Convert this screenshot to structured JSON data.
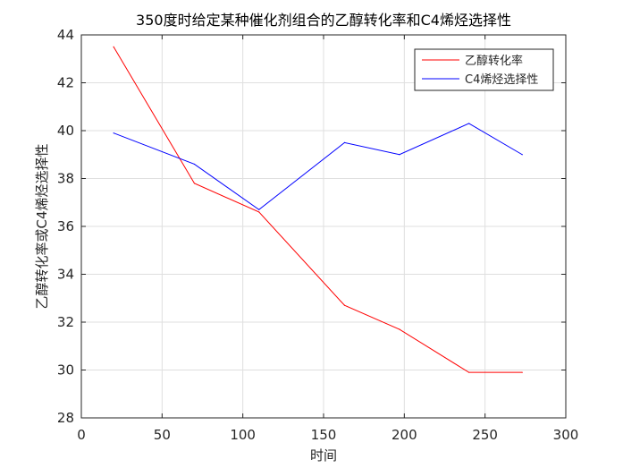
{
  "chart_data": {
    "type": "line",
    "title": "350度时给定某种催化剂组合的乙醇转化率和C4烯烃选择性",
    "xlabel": "时间",
    "ylabel": "乙醇转化率或C4烯烃选择性",
    "xlim": [
      0,
      300
    ],
    "ylim": [
      28,
      44
    ],
    "xticks": [
      0,
      50,
      100,
      150,
      200,
      250,
      300
    ],
    "yticks": [
      28,
      30,
      32,
      34,
      36,
      38,
      40,
      42,
      44
    ],
    "grid": true,
    "legend_position": "top-right",
    "series": [
      {
        "name": "乙醇转化率",
        "color": "#ff0000",
        "x": [
          20,
          70,
          110,
          163,
          197,
          240,
          273
        ],
        "y": [
          43.5,
          37.8,
          36.6,
          32.7,
          31.7,
          29.9,
          29.9
        ]
      },
      {
        "name": "C4烯烃选择性",
        "color": "#0000ff",
        "x": [
          20,
          70,
          110,
          163,
          197,
          240,
          273
        ],
        "y": [
          39.9,
          38.6,
          36.7,
          39.5,
          39.0,
          40.3,
          39.0
        ]
      }
    ]
  }
}
